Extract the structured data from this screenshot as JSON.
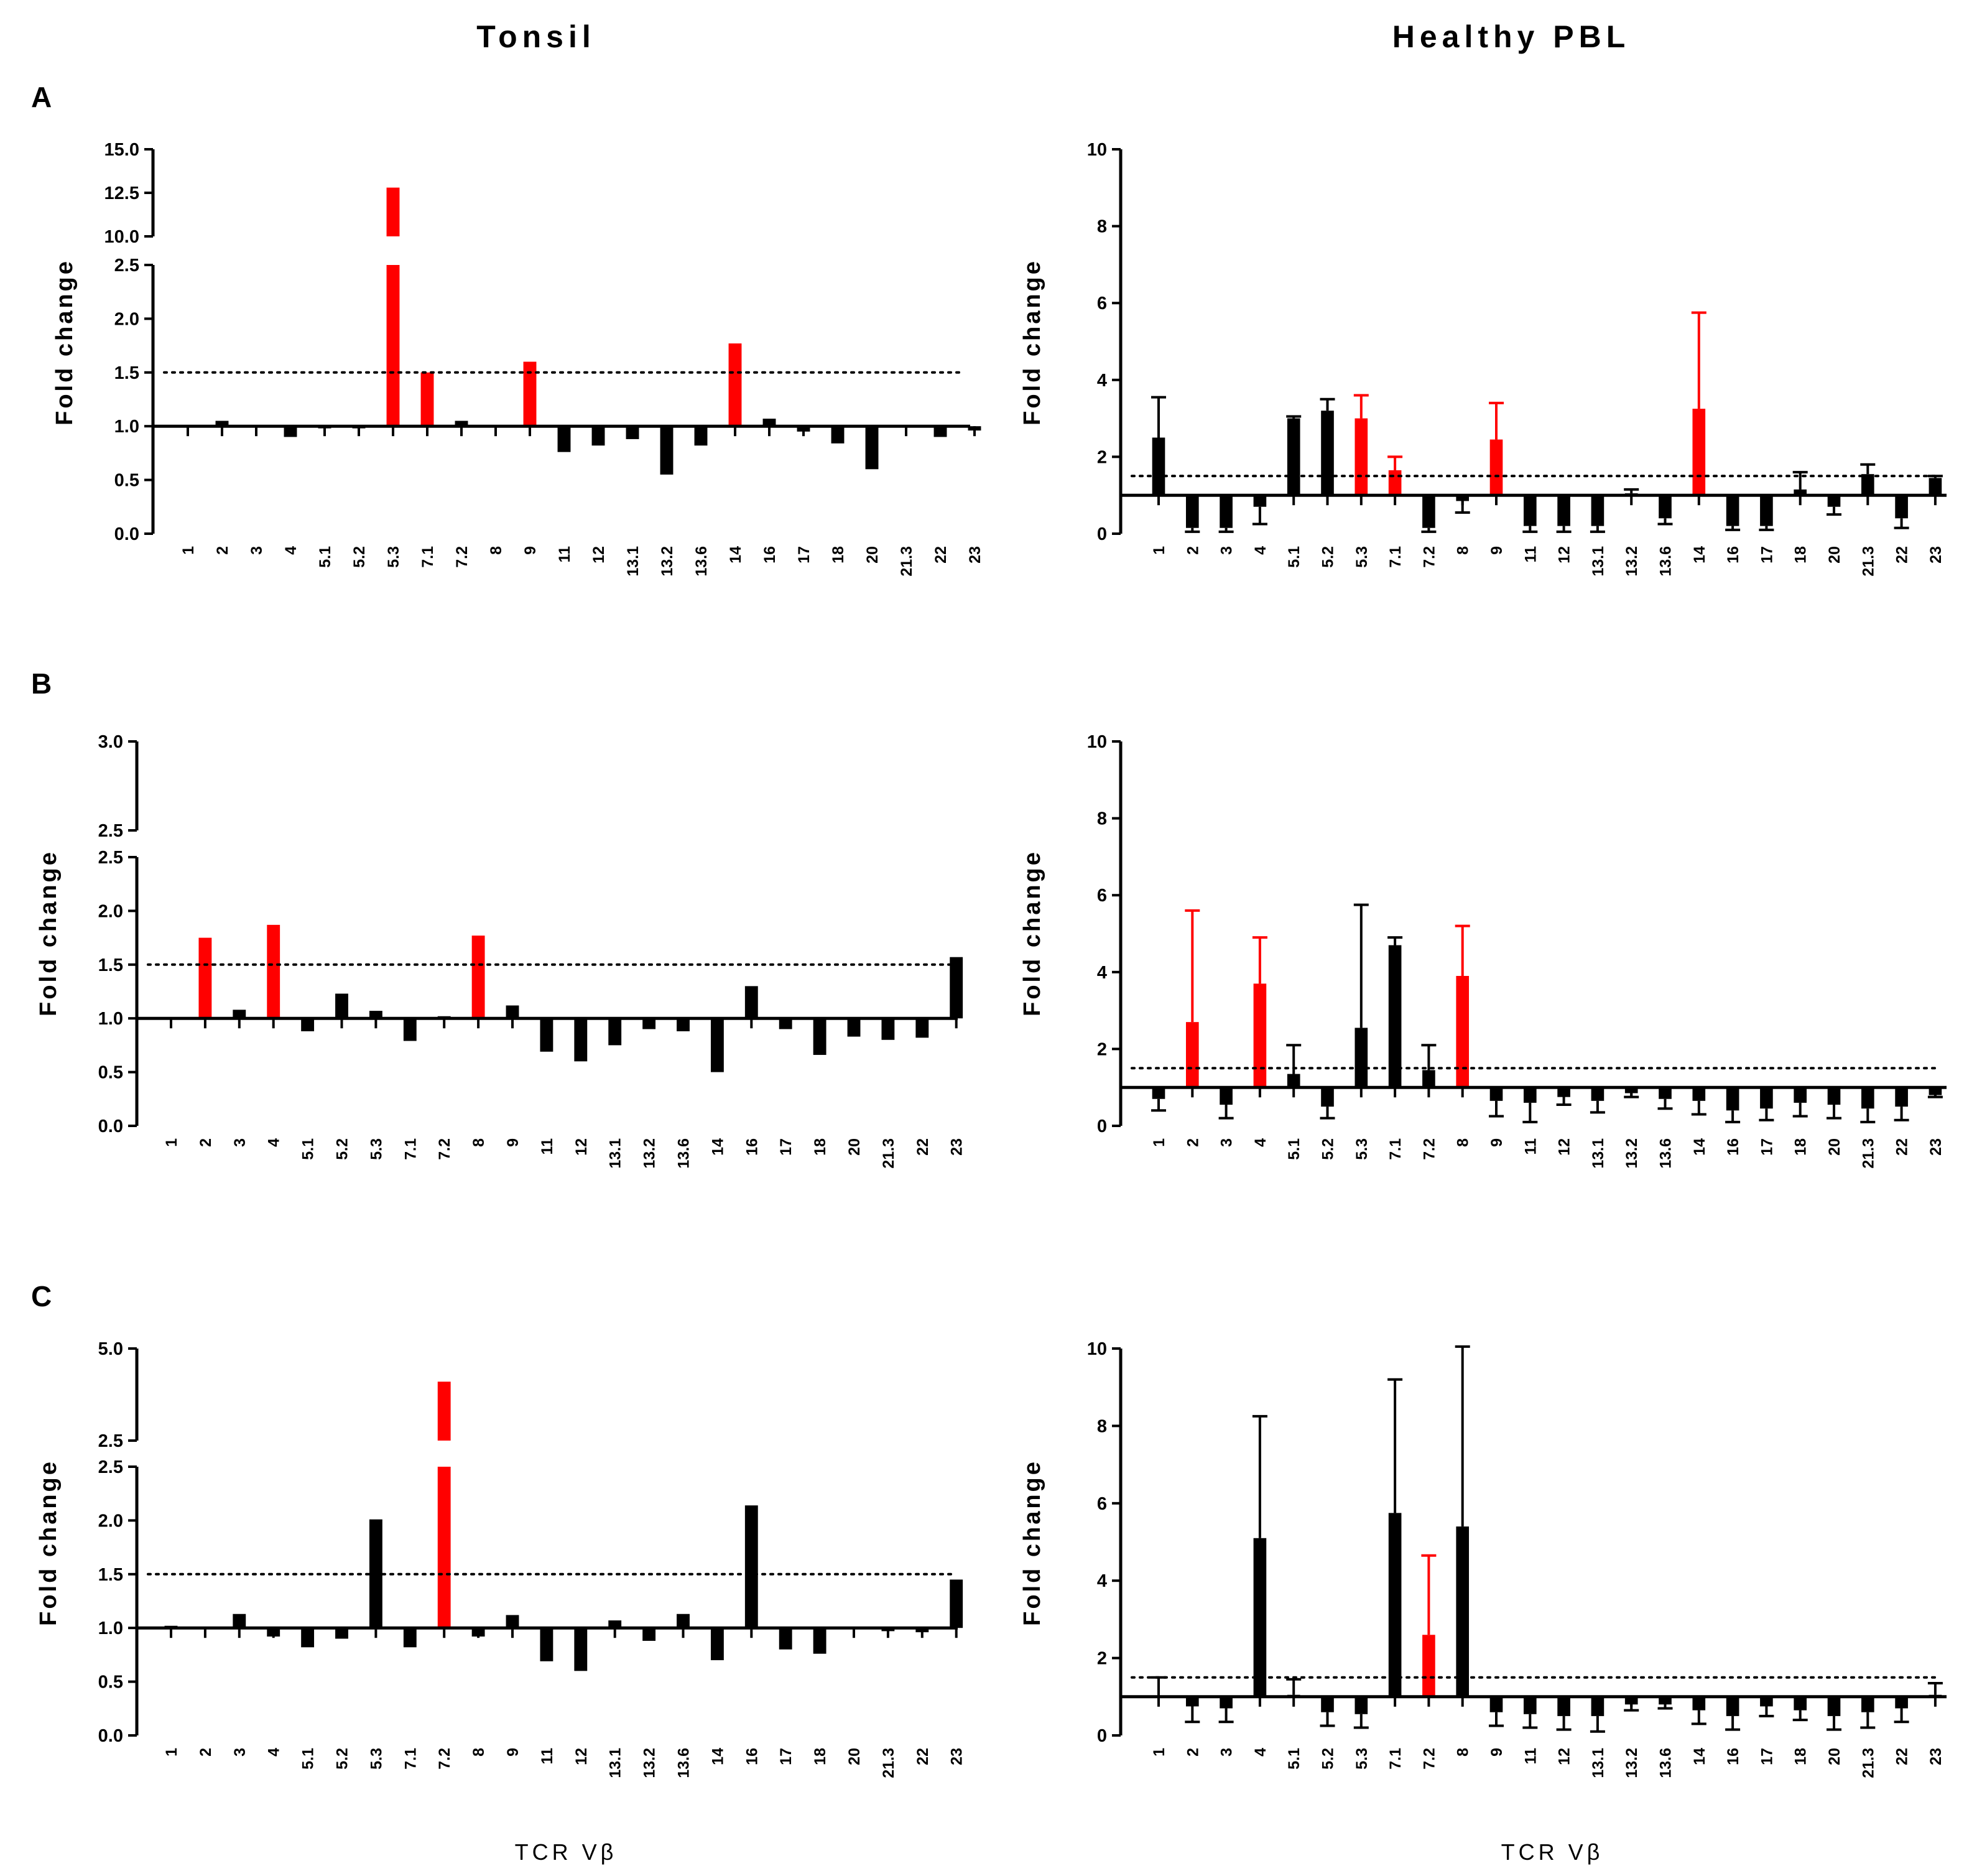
{
  "figure": {
    "column_titles": [
      "Tonsil",
      "Healthy PBL"
    ],
    "panel_labels": [
      "A",
      "B",
      "C"
    ],
    "xlabel": "TCR Vβ",
    "ylabel": "Fold change",
    "colors": {
      "bar": "#000000",
      "highlight": "#ff0000",
      "threshold_line": "#000000"
    },
    "threshold": 1.5
  },
  "chart_data": [
    {
      "id": "A-tonsil",
      "type": "bar",
      "panel": "A",
      "column": "Tonsil",
      "categories": [
        "1",
        "2",
        "3",
        "4",
        "5.1",
        "5.2",
        "5.3",
        "7.1",
        "7.2",
        "8",
        "9",
        "11",
        "12",
        "13.1",
        "13.2",
        "13.6",
        "14",
        "16",
        "17",
        "18",
        "20",
        "21.3",
        "22",
        "23"
      ],
      "values": [
        0.99,
        1.05,
        0.99,
        0.9,
        0.98,
        0.98,
        12.8,
        1.5,
        1.05,
        1.01,
        1.6,
        0.76,
        0.82,
        0.88,
        0.55,
        0.82,
        1.77,
        1.07,
        0.95,
        0.84,
        0.6,
        1.01,
        0.9,
        0.96
      ],
      "highlight": [
        false,
        false,
        false,
        false,
        false,
        false,
        true,
        true,
        false,
        false,
        true,
        false,
        false,
        false,
        false,
        false,
        true,
        false,
        false,
        false,
        false,
        false,
        false,
        false
      ],
      "errors": null,
      "baseline": 1.0,
      "threshold": 1.5,
      "y_axis": {
        "broken": true,
        "lower": {
          "range": [
            0,
            2.5
          ],
          "ticks": [
            "0.0",
            "0.5",
            "1.0",
            "1.5",
            "2.0",
            "2.5"
          ]
        },
        "upper": {
          "range": [
            10,
            15
          ],
          "ticks": [
            "10.0",
            "12.5",
            "15.0"
          ]
        }
      },
      "ylabel": "Fold change",
      "xlabel": ""
    },
    {
      "id": "A-pbl",
      "type": "bar",
      "panel": "A",
      "column": "Healthy PBL",
      "categories": [
        "1",
        "2",
        "3",
        "4",
        "5.1",
        "5.2",
        "5.3",
        "7.1",
        "7.2",
        "8",
        "9",
        "11",
        "12",
        "13.1",
        "13.2",
        "13.6",
        "14",
        "16",
        "17",
        "18",
        "20",
        "21.3",
        "22",
        "23"
      ],
      "values": [
        2.5,
        0.15,
        0.15,
        0.7,
        3.0,
        3.2,
        3.0,
        1.65,
        0.15,
        0.85,
        2.45,
        0.2,
        0.2,
        0.2,
        1.05,
        0.4,
        3.25,
        0.2,
        0.2,
        1.15,
        0.7,
        1.55,
        0.4,
        1.45
      ],
      "errors": [
        1.05,
        0.1,
        0.1,
        0.45,
        0.05,
        0.3,
        0.6,
        0.35,
        0.1,
        0.3,
        0.95,
        0.15,
        0.15,
        0.15,
        0.1,
        0.15,
        2.5,
        0.1,
        0.1,
        0.45,
        0.2,
        0.25,
        0.25,
        0.05
      ],
      "highlight": [
        false,
        false,
        false,
        false,
        false,
        false,
        true,
        true,
        false,
        false,
        true,
        false,
        false,
        false,
        false,
        false,
        true,
        false,
        false,
        false,
        false,
        false,
        false,
        false
      ],
      "baseline": 1.0,
      "threshold": 1.5,
      "y_axis": {
        "broken": false,
        "range": [
          0,
          10
        ],
        "ticks": [
          "0",
          "2",
          "4",
          "6",
          "8",
          "10"
        ]
      },
      "ylabel": "Fold change",
      "xlabel": ""
    },
    {
      "id": "B-tonsil",
      "type": "bar",
      "panel": "B",
      "column": "Tonsil",
      "categories": [
        "1",
        "2",
        "3",
        "4",
        "5.1",
        "5.2",
        "5.3",
        "7.1",
        "7.2",
        "8",
        "9",
        "11",
        "12",
        "13.1",
        "13.2",
        "13.6",
        "14",
        "16",
        "17",
        "18",
        "20",
        "21.3",
        "22",
        "23"
      ],
      "values": [
        0.99,
        1.75,
        1.08,
        1.87,
        0.88,
        1.23,
        1.07,
        0.79,
        1.02,
        1.77,
        1.12,
        0.69,
        0.6,
        0.75,
        0.9,
        0.88,
        0.5,
        1.3,
        0.9,
        0.66,
        0.83,
        0.8,
        0.82,
        1.57
      ],
      "highlight": [
        false,
        true,
        false,
        true,
        false,
        false,
        false,
        false,
        false,
        true,
        false,
        false,
        false,
        false,
        false,
        false,
        false,
        false,
        false,
        false,
        false,
        false,
        false,
        false
      ],
      "errors": null,
      "baseline": 1.0,
      "threshold": 1.5,
      "y_axis": {
        "broken": true,
        "lower": {
          "range": [
            0,
            2.5
          ],
          "ticks": [
            "0.0",
            "0.5",
            "1.0",
            "1.5",
            "2.0",
            "2.5"
          ]
        },
        "upper": {
          "range": [
            2.5,
            3.0
          ],
          "ticks": [
            "2.5",
            "3.0"
          ]
        }
      },
      "ylabel": "Fold change",
      "xlabel": ""
    },
    {
      "id": "B-pbl",
      "type": "bar",
      "panel": "B",
      "column": "Healthy PBL",
      "categories": [
        "1",
        "2",
        "3",
        "4",
        "5.1",
        "5.2",
        "5.3",
        "7.1",
        "7.2",
        "8",
        "9",
        "11",
        "12",
        "13.1",
        "13.2",
        "13.6",
        "14",
        "16",
        "17",
        "18",
        "20",
        "21.3",
        "22",
        "23"
      ],
      "values": [
        0.7,
        2.7,
        0.55,
        3.7,
        1.35,
        0.5,
        2.55,
        4.7,
        1.45,
        3.9,
        0.65,
        0.6,
        0.75,
        0.65,
        0.85,
        0.7,
        0.65,
        0.4,
        0.45,
        0.6,
        0.55,
        0.45,
        0.5,
        0.8
      ],
      "errors": [
        0.3,
        2.9,
        0.35,
        1.2,
        0.75,
        0.3,
        3.2,
        0.2,
        0.65,
        1.3,
        0.4,
        0.5,
        0.2,
        0.3,
        0.1,
        0.25,
        0.35,
        0.3,
        0.3,
        0.35,
        0.35,
        0.35,
        0.35,
        0.05
      ],
      "highlight": [
        false,
        true,
        false,
        true,
        false,
        false,
        false,
        false,
        false,
        true,
        false,
        false,
        false,
        false,
        false,
        false,
        false,
        false,
        false,
        false,
        false,
        false,
        false,
        false
      ],
      "baseline": 1.0,
      "threshold": 1.5,
      "y_axis": {
        "broken": false,
        "range": [
          0,
          10
        ],
        "ticks": [
          "0",
          "2",
          "4",
          "6",
          "8",
          "10"
        ]
      },
      "ylabel": "Fold change",
      "xlabel": ""
    },
    {
      "id": "C-tonsil",
      "type": "bar",
      "panel": "C",
      "column": "Tonsil",
      "categories": [
        "1",
        "2",
        "3",
        "4",
        "5.1",
        "5.2",
        "5.3",
        "7.1",
        "7.2",
        "8",
        "9",
        "11",
        "12",
        "13.1",
        "13.2",
        "13.6",
        "14",
        "16",
        "17",
        "18",
        "20",
        "21.3",
        "22",
        "23"
      ],
      "values": [
        1.02,
        0.99,
        1.13,
        0.92,
        0.82,
        0.9,
        2.01,
        0.82,
        4.1,
        0.92,
        1.12,
        0.69,
        0.6,
        1.07,
        0.88,
        1.13,
        0.7,
        2.14,
        0.8,
        0.76,
        0.99,
        0.97,
        0.96,
        1.45
      ],
      "highlight": [
        false,
        false,
        false,
        false,
        false,
        false,
        false,
        false,
        true,
        false,
        false,
        false,
        false,
        false,
        false,
        false,
        false,
        false,
        false,
        false,
        false,
        false,
        false,
        false
      ],
      "errors": null,
      "baseline": 1.0,
      "threshold": 1.5,
      "y_axis": {
        "broken": true,
        "lower": {
          "range": [
            0,
            2.5
          ],
          "ticks": [
            "0.0",
            "0.5",
            "1.0",
            "1.5",
            "2.0",
            "2.5"
          ]
        },
        "upper": {
          "range": [
            2.5,
            5.0
          ],
          "ticks": [
            "2.5",
            "5.0"
          ]
        }
      },
      "ylabel": "Fold change",
      "xlabel": "TCR Vβ"
    },
    {
      "id": "C-pbl",
      "type": "bar",
      "panel": "C",
      "column": "Healthy PBL",
      "categories": [
        "1",
        "2",
        "3",
        "4",
        "5.1",
        "5.2",
        "5.3",
        "7.1",
        "7.2",
        "8",
        "9",
        "11",
        "12",
        "13.1",
        "13.2",
        "13.6",
        "14",
        "16",
        "17",
        "18",
        "20",
        "21.3",
        "22",
        "23"
      ],
      "values": [
        1.0,
        0.75,
        0.7,
        5.1,
        1.05,
        0.6,
        0.55,
        5.75,
        2.6,
        5.4,
        0.6,
        0.55,
        0.5,
        0.5,
        0.8,
        0.8,
        0.65,
        0.5,
        0.75,
        0.65,
        0.5,
        0.6,
        0.7,
        1.05
      ],
      "errors": [
        0.5,
        0.4,
        0.35,
        3.15,
        0.4,
        0.35,
        0.35,
        3.45,
        2.05,
        4.65,
        0.35,
        0.35,
        0.35,
        0.4,
        0.15,
        0.1,
        0.35,
        0.35,
        0.25,
        0.25,
        0.35,
        0.4,
        0.35,
        0.3
      ],
      "highlight": [
        false,
        false,
        false,
        false,
        false,
        false,
        false,
        false,
        true,
        false,
        false,
        false,
        false,
        false,
        false,
        false,
        false,
        false,
        false,
        false,
        false,
        false,
        false,
        false
      ],
      "baseline": 1.0,
      "threshold": 1.5,
      "y_axis": {
        "broken": false,
        "range": [
          0,
          10
        ],
        "ticks": [
          "0",
          "2",
          "4",
          "6",
          "8",
          "10"
        ]
      },
      "ylabel": "Fold change",
      "xlabel": "TCR Vβ"
    }
  ]
}
